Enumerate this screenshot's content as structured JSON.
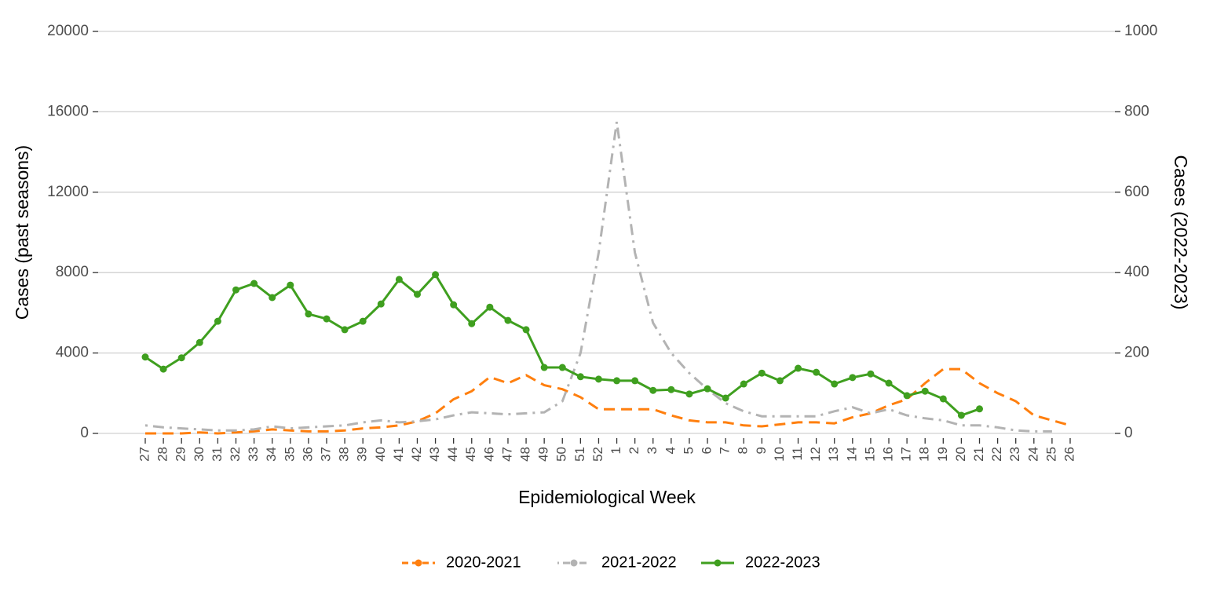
{
  "chart_data": {
    "type": "line",
    "xlabel": "Epidemiological Week",
    "ylabel": "Cases (past seasons)",
    "y2label": "Cases (2022-2023)",
    "categories": [
      "27",
      "28",
      "29",
      "30",
      "31",
      "32",
      "33",
      "34",
      "35",
      "36",
      "37",
      "38",
      "39",
      "40",
      "41",
      "42",
      "43",
      "44",
      "45",
      "46",
      "47",
      "48",
      "49",
      "50",
      "51",
      "52",
      "1",
      "2",
      "3",
      "4",
      "5",
      "6",
      "7",
      "8",
      "9",
      "10",
      "11",
      "12",
      "13",
      "14",
      "15",
      "16",
      "17",
      "18",
      "19",
      "20",
      "21",
      "22",
      "23",
      "24",
      "25",
      "26"
    ],
    "ylim": [
      0,
      20000
    ],
    "yticks": [
      0,
      4000,
      8000,
      12000,
      16000,
      20000
    ],
    "y2lim": [
      0,
      1000
    ],
    "y2ticks": [
      0,
      200,
      400,
      600,
      800,
      1000
    ],
    "grid": true,
    "legend": "bottom",
    "series": [
      {
        "name": "2020-2021",
        "color": "#ff7f0e",
        "dash": "dashed",
        "values": [
          0,
          0,
          0,
          50,
          0,
          50,
          100,
          200,
          150,
          100,
          100,
          150,
          250,
          300,
          400,
          600,
          1000,
          1700,
          2100,
          2800,
          2500,
          2900,
          2400,
          2200,
          1800,
          1200,
          1200,
          1200,
          1200,
          900,
          650,
          550,
          550,
          400,
          350,
          450,
          550,
          550,
          500,
          800,
          1000,
          1400,
          1700,
          2500,
          3200,
          3200,
          2500,
          2000,
          1600,
          900,
          650,
          400
        ]
      },
      {
        "name": "2021-2022",
        "color": "#b3b3b3",
        "dash": "dotdash",
        "values": [
          400,
          300,
          250,
          200,
          150,
          150,
          200,
          350,
          250,
          300,
          350,
          400,
          550,
          650,
          550,
          600,
          700,
          900,
          1050,
          1000,
          950,
          1000,
          1050,
          1600,
          4000,
          9000,
          15500,
          9000,
          5500,
          4000,
          3000,
          2200,
          1500,
          1100,
          850,
          850,
          850,
          850,
          1100,
          1300,
          1000,
          1200,
          900,
          750,
          650,
          400,
          400,
          300,
          150,
          100,
          100,
          null
        ]
      },
      {
        "name": "2022-2023",
        "color": "#3f9f1f",
        "dash": "solid",
        "markers": true,
        "axis": "y2",
        "values": [
          190,
          160,
          188,
          226,
          279,
          357,
          373,
          338,
          369,
          297,
          285,
          258,
          279,
          322,
          383,
          346,
          395,
          320,
          273,
          314,
          281,
          258,
          164,
          164,
          141,
          135,
          131,
          131,
          107,
          109,
          98,
          111,
          88,
          123,
          150,
          131,
          162,
          152,
          123,
          139,
          148,
          125,
          94,
          105,
          86,
          45,
          61,
          null,
          null,
          null,
          null,
          null
        ]
      }
    ]
  }
}
